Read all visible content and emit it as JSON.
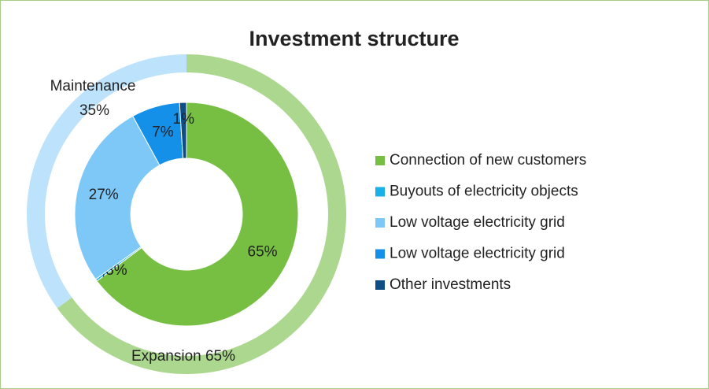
{
  "chart_data": {
    "type": "donut",
    "title": "Investment structure",
    "outer": {
      "categories": [
        "Expansion",
        "Maintenance"
      ],
      "values": [
        65,
        35
      ],
      "value_labels": [
        "65%",
        "35%"
      ],
      "colors": [
        "#acd78f",
        "#bde2fb"
      ]
    },
    "inner": {
      "categories": [
        "Connection of new customers",
        "Buyouts of electricity objects",
        "Low voltage electricity grid",
        "Low voltage electricity grid",
        "Other investments"
      ],
      "values": [
        65,
        0.3,
        27,
        7,
        1
      ],
      "value_labels": [
        "65%",
        "0,3%",
        "27%",
        "7%",
        "1%"
      ],
      "colors": [
        "#76bf43",
        "#1ab0e8",
        "#7ec8f8",
        "#1590e8",
        "#0e4e85"
      ]
    },
    "legend": "right"
  }
}
